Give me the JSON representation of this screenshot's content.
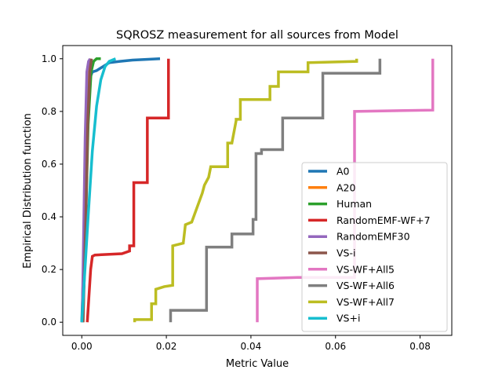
{
  "chart_data": {
    "type": "line",
    "title": "SQROSZ measurement for all sources from Model",
    "xlabel": "Metric Value",
    "ylabel": "Empirical Distribution function",
    "xlim": [
      -0.0045,
      0.0875
    ],
    "ylim": [
      -0.05,
      1.05
    ],
    "xticks": [
      0.0,
      0.02,
      0.04,
      0.06,
      0.08
    ],
    "xtick_labels": [
      "0.00",
      "0.02",
      "0.04",
      "0.06",
      "0.08"
    ],
    "yticks": [
      0.0,
      0.2,
      0.4,
      0.6,
      0.8,
      1.0
    ],
    "ytick_labels": [
      "0.0",
      "0.2",
      "0.4",
      "0.6",
      "0.8",
      "1.0"
    ],
    "grid": false,
    "legend_position": "lower-right",
    "series": [
      {
        "name": "A0",
        "color": "#1f77b4",
        "step": false,
        "points": [
          [
            0.0,
            0.0
          ],
          [
            0.0005,
            0.25
          ],
          [
            0.001,
            0.6
          ],
          [
            0.0015,
            0.85
          ],
          [
            0.002,
            0.93
          ],
          [
            0.0025,
            0.95
          ],
          [
            0.0035,
            0.955
          ],
          [
            0.005,
            0.97
          ],
          [
            0.0065,
            0.985
          ],
          [
            0.009,
            0.99
          ],
          [
            0.012,
            0.995
          ],
          [
            0.0185,
            1.0
          ]
        ]
      },
      {
        "name": "A20",
        "color": "#ff7f0e",
        "step": false,
        "points": [
          [
            0.0003,
            0.0
          ],
          [
            0.0008,
            0.35
          ],
          [
            0.0013,
            0.75
          ],
          [
            0.0018,
            0.95
          ],
          [
            0.0022,
            1.0
          ]
        ]
      },
      {
        "name": "Human",
        "color": "#2ca02c",
        "step": false,
        "points": [
          [
            0.0002,
            0.0
          ],
          [
            0.0008,
            0.3
          ],
          [
            0.0015,
            0.75
          ],
          [
            0.0022,
            0.95
          ],
          [
            0.0028,
            0.99
          ],
          [
            0.0035,
            1.0
          ],
          [
            0.0045,
            1.0
          ]
        ]
      },
      {
        "name": "RandomEMF-WF+7",
        "color": "#d62728",
        "step": true,
        "points": [
          [
            0.0013,
            0.0
          ],
          [
            0.0017,
            0.1
          ],
          [
            0.0021,
            0.2
          ],
          [
            0.0025,
            0.25
          ],
          [
            0.0031,
            0.255
          ],
          [
            0.0095,
            0.26
          ],
          [
            0.0113,
            0.27
          ],
          [
            0.0113,
            0.29
          ],
          [
            0.0123,
            0.29
          ],
          [
            0.0123,
            0.53
          ],
          [
            0.0155,
            0.53
          ],
          [
            0.0155,
            0.775
          ],
          [
            0.0205,
            0.775
          ],
          [
            0.0205,
            1.0
          ]
        ]
      },
      {
        "name": "RandomEMF30",
        "color": "#9467bd",
        "step": false,
        "points": [
          [
            0.0001,
            0.0
          ],
          [
            0.0004,
            0.3
          ],
          [
            0.0008,
            0.7
          ],
          [
            0.0012,
            0.95
          ],
          [
            0.0016,
            0.99
          ],
          [
            0.002,
            1.0
          ]
        ]
      },
      {
        "name": "VS-i",
        "color": "#8c564b",
        "step": false,
        "points": [
          [
            0.0003,
            0.0
          ],
          [
            0.0009,
            0.35
          ],
          [
            0.0014,
            0.75
          ],
          [
            0.0019,
            0.95
          ],
          [
            0.0023,
            1.0
          ]
        ]
      },
      {
        "name": "VS-WF+All5",
        "color": "#e377c2",
        "step": true,
        "points": [
          [
            0.0415,
            0.0
          ],
          [
            0.0415,
            0.165
          ],
          [
            0.051,
            0.17
          ],
          [
            0.0645,
            0.17
          ],
          [
            0.0645,
            0.8
          ],
          [
            0.083,
            0.805
          ],
          [
            0.083,
            1.0
          ]
        ]
      },
      {
        "name": "VS-WF+All6",
        "color": "#7f7f7f",
        "step": true,
        "points": [
          [
            0.021,
            0.0
          ],
          [
            0.021,
            0.045
          ],
          [
            0.0295,
            0.045
          ],
          [
            0.0295,
            0.285
          ],
          [
            0.0355,
            0.285
          ],
          [
            0.0355,
            0.335
          ],
          [
            0.0405,
            0.335
          ],
          [
            0.0405,
            0.39
          ],
          [
            0.0412,
            0.39
          ],
          [
            0.0412,
            0.64
          ],
          [
            0.0425,
            0.64
          ],
          [
            0.0425,
            0.655
          ],
          [
            0.0475,
            0.655
          ],
          [
            0.0475,
            0.775
          ],
          [
            0.057,
            0.775
          ],
          [
            0.057,
            0.945
          ],
          [
            0.0705,
            0.945
          ],
          [
            0.0705,
            1.0
          ]
        ]
      },
      {
        "name": "VS-WF+All7",
        "color": "#bcbd22",
        "step": true,
        "points": [
          [
            0.0125,
            0.0
          ],
          [
            0.0125,
            0.01
          ],
          [
            0.0165,
            0.01
          ],
          [
            0.0165,
            0.07
          ],
          [
            0.0175,
            0.07
          ],
          [
            0.0175,
            0.125
          ],
          [
            0.0195,
            0.135
          ],
          [
            0.0215,
            0.14
          ],
          [
            0.0215,
            0.29
          ],
          [
            0.024,
            0.3
          ],
          [
            0.0245,
            0.37
          ],
          [
            0.026,
            0.38
          ],
          [
            0.0285,
            0.49
          ],
          [
            0.029,
            0.52
          ],
          [
            0.03,
            0.55
          ],
          [
            0.0305,
            0.59
          ],
          [
            0.0345,
            0.59
          ],
          [
            0.0345,
            0.68
          ],
          [
            0.0355,
            0.68
          ],
          [
            0.0365,
            0.765
          ],
          [
            0.0365,
            0.77
          ],
          [
            0.0375,
            0.77
          ],
          [
            0.0375,
            0.845
          ],
          [
            0.0445,
            0.845
          ],
          [
            0.0445,
            0.895
          ],
          [
            0.0465,
            0.895
          ],
          [
            0.0465,
            0.95
          ],
          [
            0.0535,
            0.95
          ],
          [
            0.0535,
            0.985
          ],
          [
            0.065,
            0.99
          ],
          [
            0.065,
            1.0
          ]
        ]
      },
      {
        "name": "VS+i",
        "color": "#17becf",
        "step": false,
        "points": [
          [
            0.0,
            0.0
          ],
          [
            0.0015,
            0.4
          ],
          [
            0.0025,
            0.65
          ],
          [
            0.0035,
            0.82
          ],
          [
            0.0045,
            0.92
          ],
          [
            0.0055,
            0.97
          ],
          [
            0.0065,
            0.99
          ],
          [
            0.008,
            1.0
          ]
        ]
      }
    ]
  }
}
